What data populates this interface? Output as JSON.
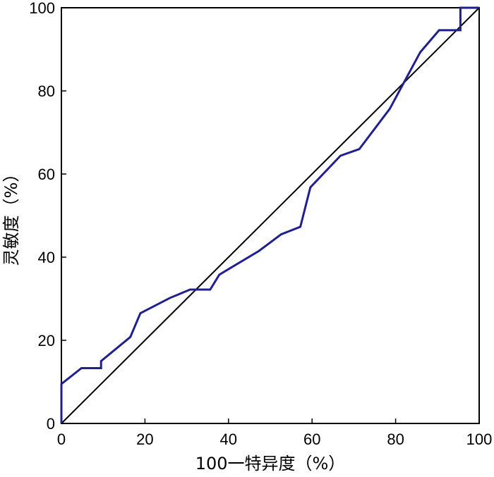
{
  "chart_data": {
    "type": "line",
    "title": "",
    "xlabel": "100一特异度（%）",
    "ylabel": "灵敏度（%）",
    "xlim": [
      0,
      100
    ],
    "ylim": [
      0,
      100
    ],
    "x_ticks": [
      "0",
      "20",
      "40",
      "60",
      "80",
      "100"
    ],
    "y_ticks": [
      "0",
      "20",
      "40",
      "60",
      "80",
      "100"
    ],
    "grid": false,
    "legend": "none",
    "series": [
      {
        "color": "#1f1f8f",
        "points": [
          [
            0,
            0
          ],
          [
            0,
            9.5
          ],
          [
            4.8,
            13.3
          ],
          [
            9.5,
            13.3
          ],
          [
            9.5,
            15
          ],
          [
            16.5,
            20.8
          ],
          [
            18.9,
            26.5
          ],
          [
            26,
            30.2
          ],
          [
            30.8,
            32.2
          ],
          [
            35.6,
            32.2
          ],
          [
            37.8,
            35.8
          ],
          [
            47.3,
            41.5
          ],
          [
            52.6,
            45.5
          ],
          [
            57.2,
            47.3
          ],
          [
            59.6,
            56.8
          ],
          [
            66.8,
            64.4
          ],
          [
            71.3,
            66
          ],
          [
            78.6,
            75.7
          ],
          [
            85.9,
            89.3
          ],
          [
            90.4,
            94.6
          ],
          [
            95.5,
            94.6
          ],
          [
            95.5,
            100
          ],
          [
            100,
            100
          ]
        ]
      },
      {
        "color": "#000000",
        "points": [
          [
            0,
            0
          ],
          [
            100,
            100
          ]
        ]
      }
    ]
  }
}
